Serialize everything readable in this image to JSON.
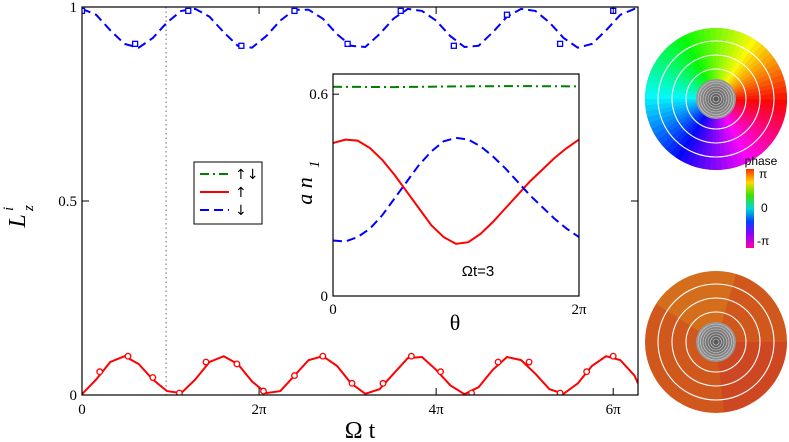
{
  "chart_data": [
    {
      "type": "line",
      "xlabel": "Ω t",
      "ylabel_main": "L",
      "ylabel_sub": "z",
      "ylabel_sup": "i",
      "xlim": [
        0,
        6.28
      ],
      "ylim": [
        0,
        1
      ],
      "x_unit": "π",
      "x_ticks": [
        {
          "value": 0,
          "label": "0"
        },
        {
          "value": 2,
          "label": "2π"
        },
        {
          "value": 4,
          "label": "4π"
        },
        {
          "value": 6,
          "label": "6π"
        }
      ],
      "y_ticks": [
        {
          "value": 0,
          "label": "0"
        },
        {
          "value": 0.5,
          "label": "0.5"
        },
        {
          "value": 1,
          "label": "1"
        }
      ],
      "vertical_marker": {
        "x": 0.95,
        "style": "dotted",
        "color": "#999999"
      },
      "legend": {
        "placement": "center-left",
        "entries": [
          {
            "label": "↑↓",
            "color": "#008000",
            "dash": "dash-dot"
          },
          {
            "label": "↑",
            "color": "#ff0000",
            "dash": "solid"
          },
          {
            "label": "↓",
            "color": "#0000ff",
            "dash": "dashed"
          }
        ]
      },
      "series": [
        {
          "label": "↓",
          "color": "#0000ff",
          "dash": "dashed",
          "marker": "square",
          "x": [
            0,
            0.16,
            0.32,
            0.48,
            0.64,
            0.8,
            0.96,
            1.12,
            1.28,
            1.44,
            1.6,
            1.76,
            1.92,
            2.08,
            2.24,
            2.4,
            2.56,
            2.72,
            2.88,
            3.04,
            3.2,
            3.36,
            3.52,
            3.68,
            3.84,
            4.0,
            4.16,
            4.32,
            4.48,
            4.64,
            4.8,
            4.96,
            5.12,
            5.28,
            5.44,
            5.6,
            5.76,
            5.92,
            6.08,
            6.24,
            6.28
          ],
          "y": [
            0.995,
            0.98,
            0.94,
            0.905,
            0.895,
            0.92,
            0.96,
            0.99,
            0.995,
            0.975,
            0.935,
            0.9,
            0.895,
            0.925,
            0.965,
            0.993,
            0.993,
            0.97,
            0.93,
            0.9,
            0.897,
            0.93,
            0.97,
            0.995,
            0.99,
            0.965,
            0.925,
            0.897,
            0.9,
            0.935,
            0.975,
            0.995,
            0.99,
            0.96,
            0.92,
            0.895,
            0.905,
            0.94,
            0.98,
            0.995,
            0.99
          ],
          "marker_x": [
            0,
            0.6,
            1.2,
            1.8,
            2.4,
            3.0,
            3.6,
            4.2,
            4.8,
            5.4,
            6.0
          ],
          "marker_y": [
            0.99,
            0.905,
            0.99,
            0.9,
            0.99,
            0.905,
            0.99,
            0.9,
            0.98,
            0.905,
            0.99
          ]
        },
        {
          "label": "↑",
          "color": "#ff0000",
          "dash": "solid",
          "marker": "circle",
          "x": [
            0,
            0.16,
            0.32,
            0.48,
            0.64,
            0.8,
            0.96,
            1.12,
            1.28,
            1.44,
            1.6,
            1.76,
            1.92,
            2.08,
            2.24,
            2.4,
            2.56,
            2.72,
            2.88,
            3.04,
            3.2,
            3.36,
            3.52,
            3.68,
            3.84,
            4.0,
            4.16,
            4.32,
            4.48,
            4.64,
            4.8,
            4.96,
            5.12,
            5.28,
            5.44,
            5.6,
            5.76,
            5.92,
            6.08,
            6.24,
            6.28
          ],
          "y": [
            0.002,
            0.04,
            0.085,
            0.1,
            0.08,
            0.04,
            0.01,
            0.005,
            0.04,
            0.085,
            0.1,
            0.08,
            0.035,
            0.005,
            0.01,
            0.05,
            0.09,
            0.1,
            0.075,
            0.03,
            0.003,
            0.015,
            0.055,
            0.095,
            0.098,
            0.065,
            0.025,
            0.002,
            0.02,
            0.065,
            0.098,
            0.09,
            0.055,
            0.015,
            0.003,
            0.03,
            0.075,
            0.1,
            0.09,
            0.05,
            0.03
          ],
          "marker_x": [
            0.2,
            0.52,
            0.8,
            1.1,
            1.4,
            1.75,
            2.05,
            2.4,
            2.72,
            3.05,
            3.4,
            3.72,
            4.05,
            4.4,
            4.7,
            5.05,
            5.4,
            5.7,
            6.0
          ],
          "marker_y": [
            0.06,
            0.1,
            0.045,
            0.005,
            0.085,
            0.08,
            0.01,
            0.05,
            0.1,
            0.03,
            0.03,
            0.1,
            0.06,
            0.005,
            0.085,
            0.085,
            0.005,
            0.06,
            0.1
          ]
        }
      ]
    },
    {
      "type": "line",
      "annotation": "Ωt=3",
      "xlabel": "θ",
      "ylabel_main": "a n",
      "ylabel_sub": "1",
      "xlim": [
        0,
        2
      ],
      "ylim": [
        0,
        0.66
      ],
      "x_unit": "π",
      "x_ticks": [
        {
          "value": 0,
          "label": "0"
        },
        {
          "value": 2,
          "label": "2π"
        }
      ],
      "y_ticks": [
        {
          "value": 0,
          "label": "0"
        },
        {
          "value": 0.6,
          "label": "0.6"
        }
      ],
      "series": [
        {
          "label": "↑↓",
          "color": "#008000",
          "dash": "dash-dot",
          "x": [
            0,
            0.5,
            1.0,
            1.5,
            2.0
          ],
          "y": [
            0.622,
            0.621,
            0.623,
            0.624,
            0.623
          ]
        },
        {
          "label": "↑",
          "color": "#ff0000",
          "dash": "solid",
          "x": [
            0,
            0.1,
            0.2,
            0.3,
            0.4,
            0.5,
            0.6,
            0.7,
            0.8,
            0.9,
            1.0,
            1.1,
            1.2,
            1.3,
            1.4,
            1.5,
            1.6,
            1.7,
            1.8,
            1.9,
            2.0
          ],
          "y": [
            0.455,
            0.465,
            0.462,
            0.44,
            0.405,
            0.36,
            0.31,
            0.26,
            0.21,
            0.175,
            0.155,
            0.16,
            0.185,
            0.22,
            0.26,
            0.3,
            0.34,
            0.375,
            0.41,
            0.44,
            0.465
          ]
        },
        {
          "label": "↓",
          "color": "#0000ff",
          "dash": "dashed",
          "x": [
            0,
            0.1,
            0.2,
            0.3,
            0.4,
            0.5,
            0.6,
            0.7,
            0.8,
            0.9,
            1.0,
            1.1,
            1.2,
            1.3,
            1.4,
            1.5,
            1.6,
            1.7,
            1.8,
            1.9,
            2.0
          ],
          "y": [
            0.165,
            0.162,
            0.175,
            0.2,
            0.24,
            0.29,
            0.34,
            0.39,
            0.43,
            0.46,
            0.47,
            0.465,
            0.445,
            0.415,
            0.38,
            0.34,
            0.3,
            0.265,
            0.23,
            0.2,
            0.175
          ]
        }
      ]
    }
  ],
  "colorbar": {
    "title": "phase",
    "ticks": [
      "π",
      "0",
      "-π"
    ]
  }
}
